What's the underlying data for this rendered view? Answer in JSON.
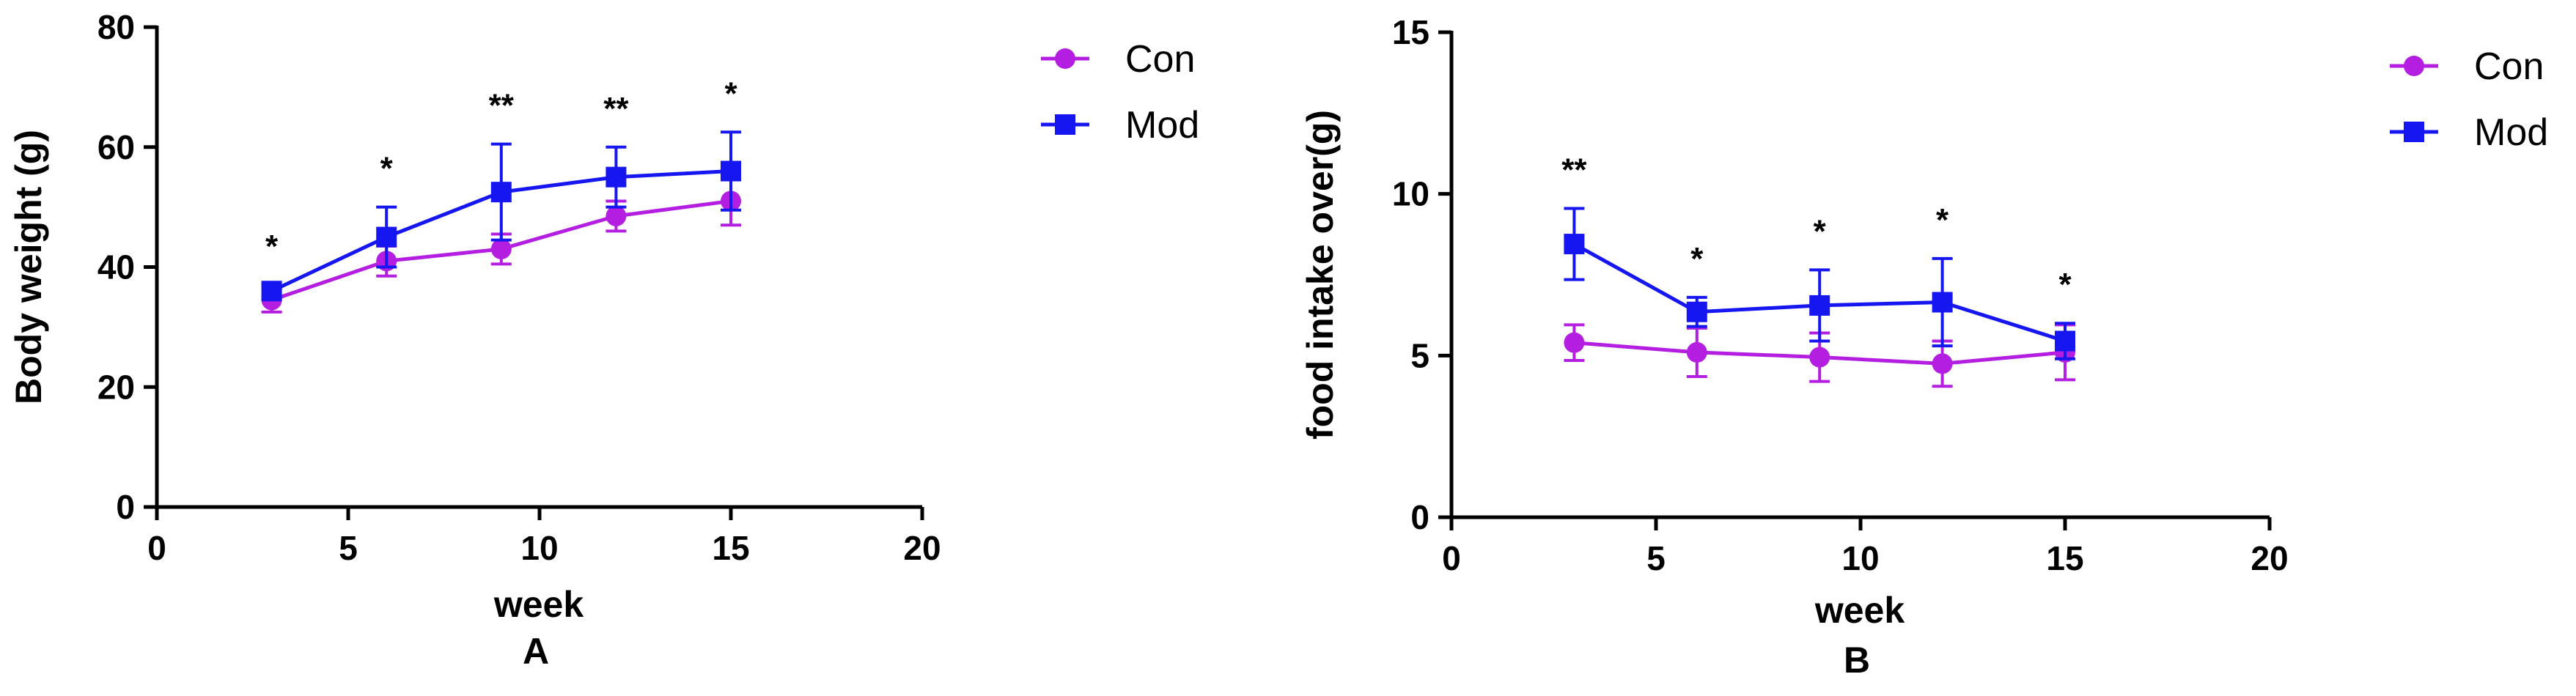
{
  "colors": {
    "Con": "#B31EE0",
    "Mod": "#1616F0",
    "axis": "#000000"
  },
  "chart_data": [
    {
      "type": "line",
      "panel_label": "A",
      "title": "",
      "xlabel": "week",
      "ylabel": "Body weight (g)",
      "xlim": [
        0,
        20
      ],
      "ylim": [
        0,
        80
      ],
      "xticks": [
        "0",
        "5",
        "10",
        "15",
        "20"
      ],
      "yticks": [
        "0",
        "20",
        "40",
        "60",
        "80"
      ],
      "grid": false,
      "legend": "top-right",
      "x": [
        3,
        6,
        9,
        12,
        15
      ],
      "series": [
        {
          "name": "Con",
          "marker": "circle",
          "values": [
            34.5,
            41,
            43,
            48.5,
            51
          ],
          "error": [
            2,
            2.5,
            2.5,
            2.5,
            4
          ]
        },
        {
          "name": "Mod",
          "marker": "square",
          "values": [
            36,
            45,
            52.5,
            55,
            56
          ],
          "error": [
            1,
            5,
            8,
            5,
            6.5
          ]
        }
      ],
      "annotations": [
        "*",
        "*",
        "**",
        "**",
        "*"
      ]
    },
    {
      "type": "line",
      "panel_label": "B",
      "title": "",
      "xlabel": "week",
      "ylabel": "food intake over(g)",
      "xlim": [
        0,
        20
      ],
      "ylim": [
        0,
        15
      ],
      "xticks": [
        "0",
        "5",
        "10",
        "15",
        "20"
      ],
      "yticks": [
        "0",
        "5",
        "10",
        "15"
      ],
      "grid": false,
      "legend": "top-right",
      "x": [
        3,
        6,
        9,
        12,
        15
      ],
      "series": [
        {
          "name": "Con",
          "marker": "circle",
          "values": [
            5.4,
            5.1,
            4.95,
            4.75,
            5.1
          ],
          "error": [
            0.55,
            0.75,
            0.75,
            0.7,
            0.85
          ]
        },
        {
          "name": "Mod",
          "marker": "square",
          "values": [
            8.45,
            6.35,
            6.55,
            6.65,
            5.45
          ],
          "error": [
            1.1,
            0.45,
            1.1,
            1.35,
            0.55
          ]
        }
      ],
      "annotations": [
        "**",
        "*",
        "*",
        "*",
        "*"
      ]
    }
  ]
}
